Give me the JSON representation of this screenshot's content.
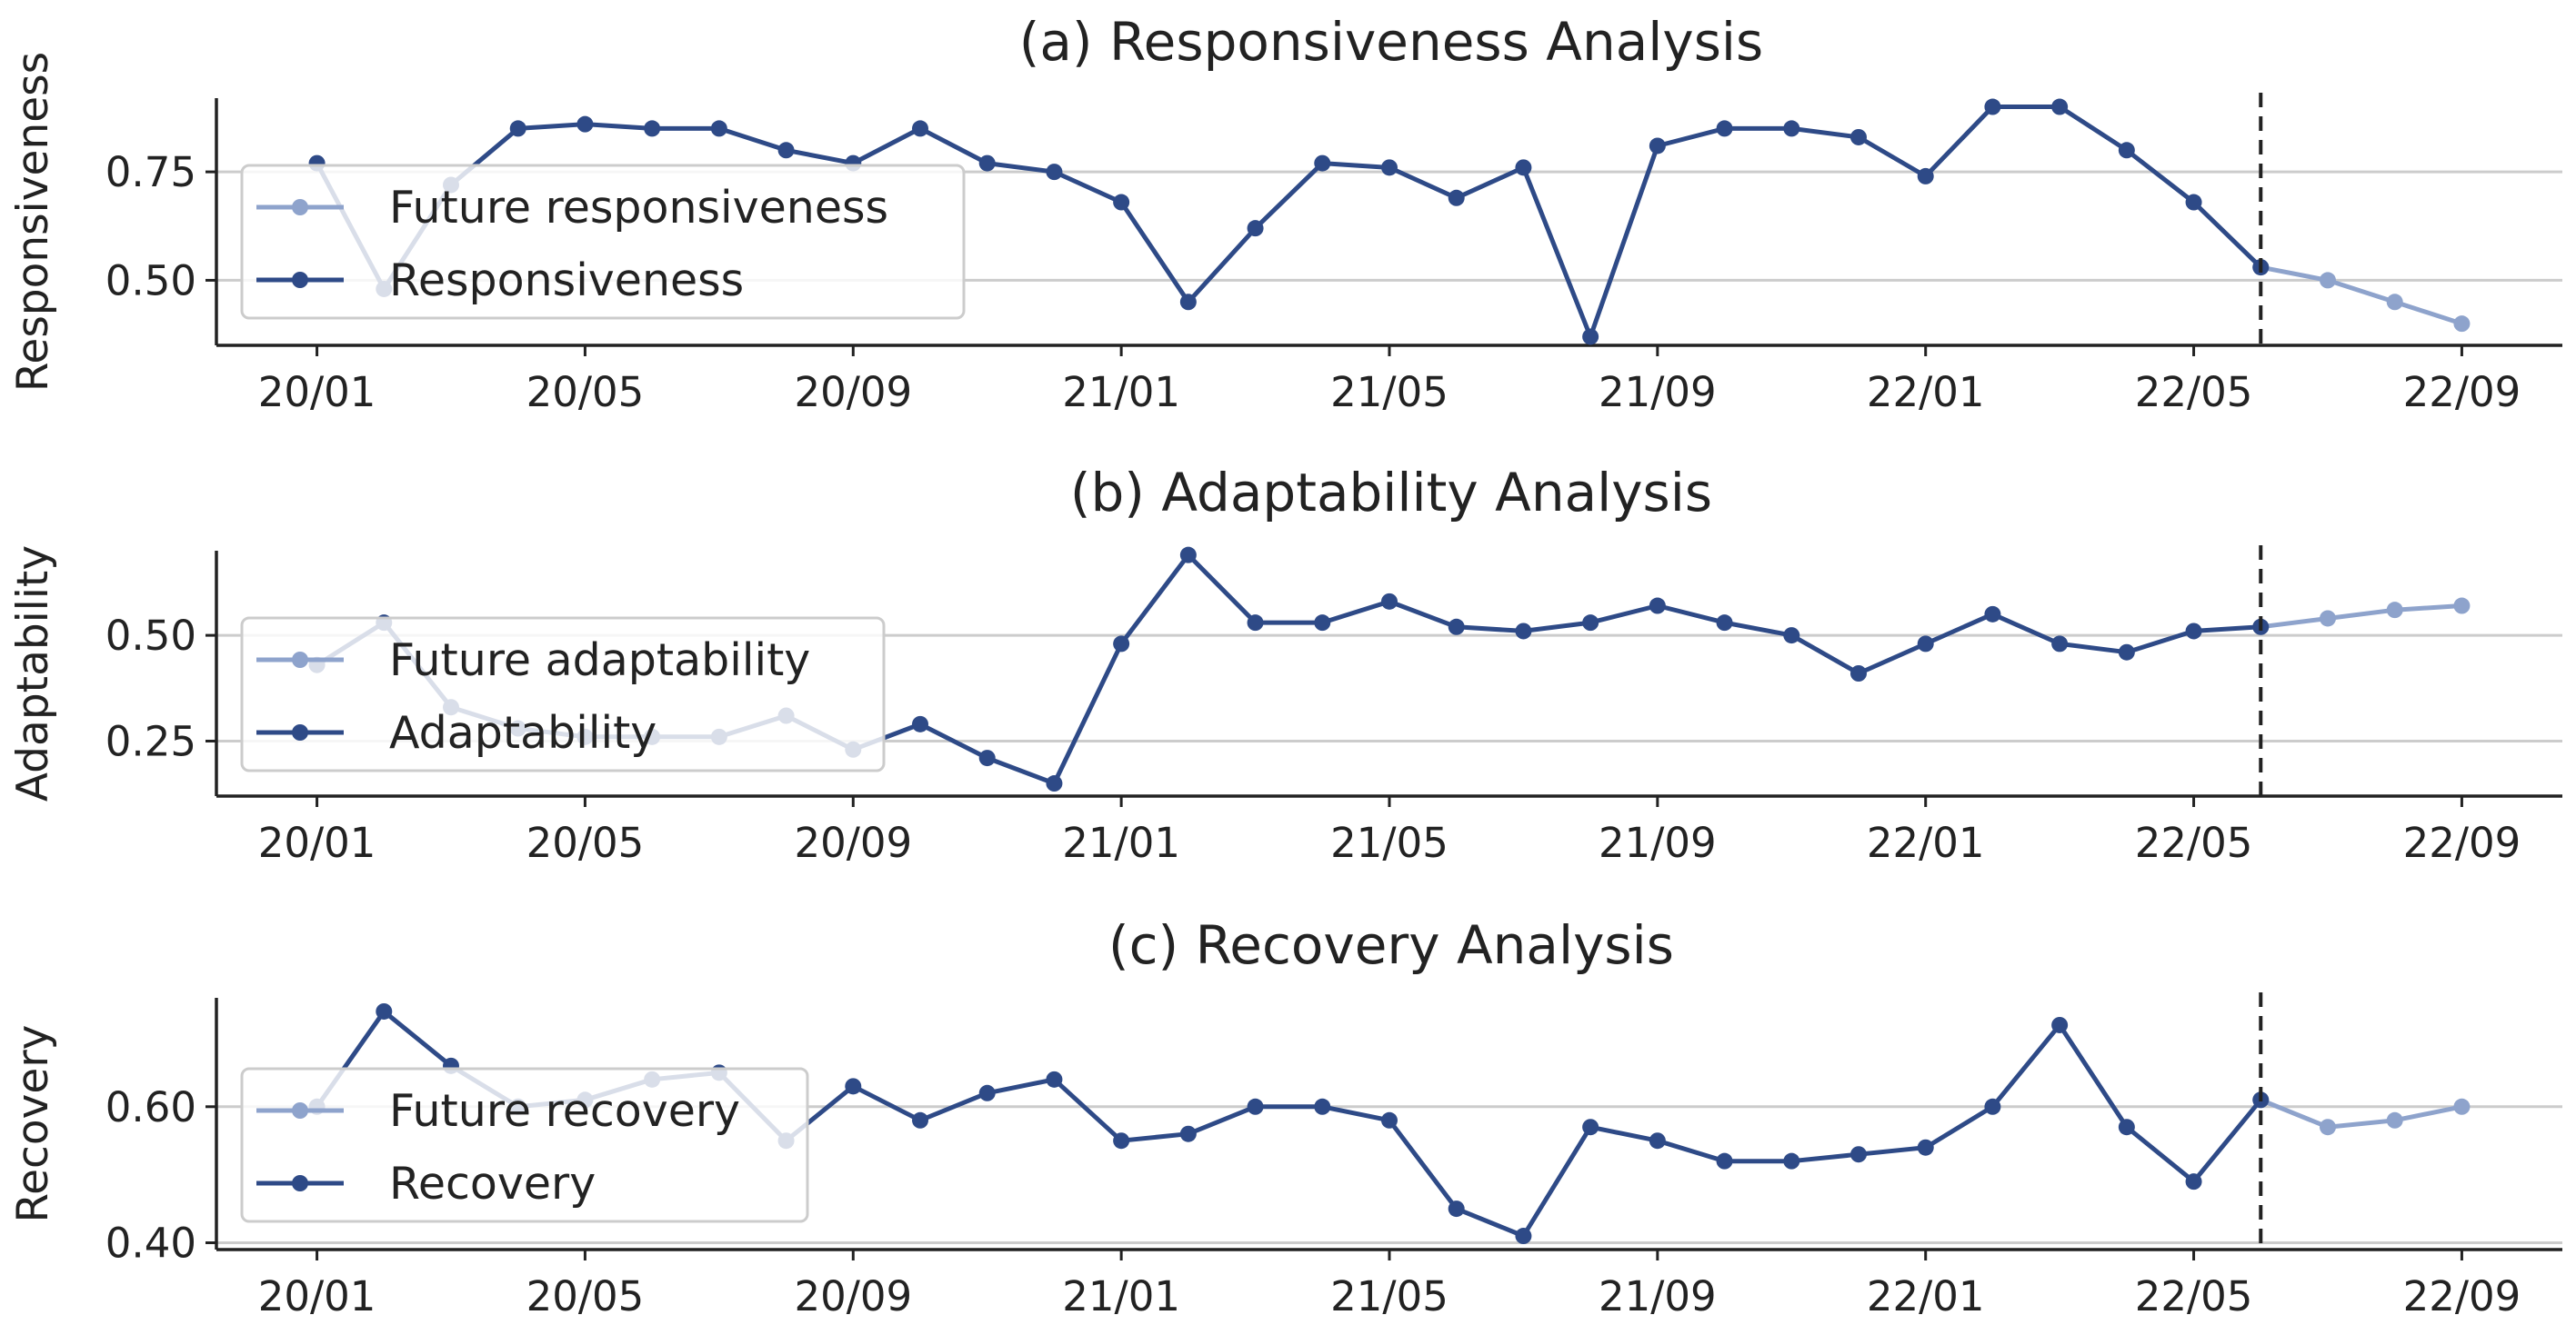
{
  "colors": {
    "observed": "#2e4a87",
    "future": "#8ea3cc",
    "grid": "#cccccc",
    "axis": "#222222"
  },
  "chart_data": [
    {
      "type": "line",
      "title": "(a) Responsiveness Analysis",
      "ylabel": "Responsiveness",
      "ylim": [
        0.35,
        0.92
      ],
      "yticks": [
        0.5,
        0.75
      ],
      "ytick_labels": [
        "0.50",
        "0.75"
      ],
      "xlim": [
        -1.5,
        33.5
      ],
      "xticks": [
        0,
        4,
        8,
        12,
        16,
        20,
        24,
        28,
        32
      ],
      "xtick_labels": [
        "20/01",
        "20/05",
        "20/09",
        "21/01",
        "21/05",
        "21/09",
        "22/01",
        "22/05",
        "22/09"
      ],
      "forecast_start": 29,
      "legend": [
        "Future responsiveness",
        "Responsiveness"
      ],
      "series": [
        {
          "name": "Responsiveness",
          "x": [
            0,
            1,
            2,
            3,
            4,
            5,
            6,
            7,
            8,
            9,
            10,
            11,
            12,
            13,
            14,
            15,
            16,
            17,
            18,
            19,
            20,
            21,
            22,
            23,
            24,
            25,
            26,
            27,
            28,
            29
          ],
          "values": [
            0.77,
            0.48,
            0.72,
            0.85,
            0.86,
            0.85,
            0.85,
            0.8,
            0.77,
            0.85,
            0.77,
            0.75,
            0.68,
            0.45,
            0.62,
            0.77,
            0.76,
            0.69,
            0.76,
            0.37,
            0.81,
            0.85,
            0.85,
            0.83,
            0.74,
            0.9,
            0.9,
            0.8,
            0.68,
            0.53
          ]
        },
        {
          "name": "Future responsiveness",
          "x": [
            29,
            30,
            31,
            32
          ],
          "values": [
            0.53,
            0.5,
            0.45,
            0.4
          ]
        }
      ]
    },
    {
      "type": "line",
      "title": "(b) Adaptability Analysis",
      "ylabel": "Adaptability",
      "ylim": [
        0.12,
        0.7
      ],
      "yticks": [
        0.25,
        0.5
      ],
      "ytick_labels": [
        "0.25",
        "0.50"
      ],
      "xlim": [
        -1.5,
        33.5
      ],
      "xticks": [
        0,
        4,
        8,
        12,
        16,
        20,
        24,
        28,
        32
      ],
      "xtick_labels": [
        "20/01",
        "20/05",
        "20/09",
        "21/01",
        "21/05",
        "21/09",
        "22/01",
        "22/05",
        "22/09"
      ],
      "forecast_start": 29,
      "legend": [
        "Future adaptability",
        "Adaptability"
      ],
      "series": [
        {
          "name": "Adaptability",
          "x": [
            0,
            1,
            2,
            3,
            4,
            5,
            6,
            7,
            8,
            9,
            10,
            11,
            12,
            13,
            14,
            15,
            16,
            17,
            18,
            19,
            20,
            21,
            22,
            23,
            24,
            25,
            26,
            27,
            28,
            29
          ],
          "values": [
            0.43,
            0.53,
            0.33,
            0.28,
            0.26,
            0.26,
            0.26,
            0.31,
            0.23,
            0.29,
            0.21,
            0.15,
            0.48,
            0.69,
            0.53,
            0.53,
            0.58,
            0.52,
            0.51,
            0.53,
            0.57,
            0.53,
            0.5,
            0.41,
            0.48,
            0.55,
            0.48,
            0.46,
            0.51,
            0.52
          ]
        },
        {
          "name": "Future adaptability",
          "x": [
            29,
            30,
            31,
            32
          ],
          "values": [
            0.52,
            0.54,
            0.56,
            0.57
          ]
        }
      ]
    },
    {
      "type": "line",
      "title": "(c) Recovery Analysis",
      "ylabel": "Recovery",
      "ylim": [
        0.39,
        0.76
      ],
      "yticks": [
        0.4,
        0.6
      ],
      "ytick_labels": [
        "0.40",
        "0.60"
      ],
      "xlim": [
        -1.5,
        33.5
      ],
      "xticks": [
        0,
        4,
        8,
        12,
        16,
        20,
        24,
        28,
        32
      ],
      "xtick_labels": [
        "20/01",
        "20/05",
        "20/09",
        "21/01",
        "21/05",
        "21/09",
        "22/01",
        "22/05",
        "22/09"
      ],
      "forecast_start": 29,
      "legend": [
        "Future recovery",
        "Recovery"
      ],
      "series": [
        {
          "name": "Recovery",
          "x": [
            0,
            1,
            2,
            3,
            4,
            5,
            6,
            7,
            8,
            9,
            10,
            11,
            12,
            13,
            14,
            15,
            16,
            17,
            18,
            19,
            20,
            21,
            22,
            23,
            24,
            25,
            26,
            27,
            28,
            29
          ],
          "values": [
            0.6,
            0.74,
            0.66,
            0.6,
            0.61,
            0.64,
            0.65,
            0.55,
            0.63,
            0.58,
            0.62,
            0.64,
            0.55,
            0.56,
            0.6,
            0.6,
            0.58,
            0.45,
            0.41,
            0.57,
            0.55,
            0.52,
            0.52,
            0.53,
            0.54,
            0.6,
            0.72,
            0.57,
            0.49,
            0.61
          ]
        },
        {
          "name": "Future recovery",
          "x": [
            29,
            30,
            31,
            32
          ],
          "values": [
            0.61,
            0.57,
            0.58,
            0.6
          ]
        }
      ]
    }
  ]
}
